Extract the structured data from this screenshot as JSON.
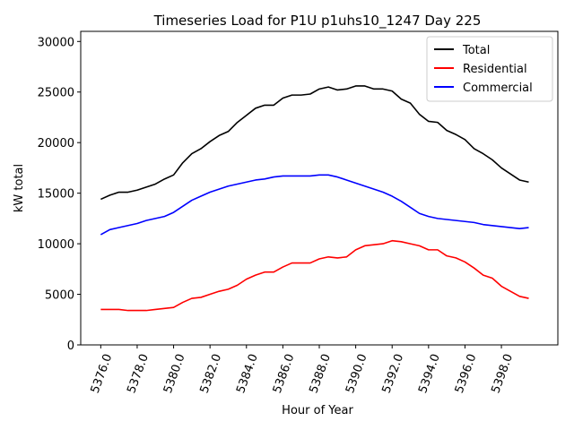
{
  "chart_data": {
    "type": "line",
    "title": "Timeseries Load for P1U p1uhs10_1247  Day 225",
    "xlabel": "Hour of Year",
    "ylabel": "kW total",
    "xlim": [
      5374.9,
      5401.1
    ],
    "ylim": [
      0,
      31000
    ],
    "xticks": [
      5376,
      5378,
      5380,
      5382,
      5384,
      5386,
      5388,
      5390,
      5392,
      5394,
      5396,
      5398
    ],
    "xtick_labels": [
      "5376.0",
      "5378.0",
      "5380.0",
      "5382.0",
      "5384.0",
      "5386.0",
      "5388.0",
      "5390.0",
      "5392.0",
      "5394.0",
      "5396.0",
      "5398.0"
    ],
    "yticks": [
      0,
      5000,
      10000,
      15000,
      20000,
      25000,
      30000
    ],
    "ytick_labels": [
      "0",
      "5000",
      "10000",
      "15000",
      "20000",
      "25000",
      "30000"
    ],
    "grid": false,
    "legend_position": "top-right",
    "x": [
      5376,
      5376.5,
      5377,
      5377.5,
      5378,
      5378.5,
      5379,
      5379.5,
      5380,
      5380.5,
      5381,
      5381.5,
      5382,
      5382.5,
      5383,
      5383.5,
      5384,
      5384.5,
      5385,
      5385.5,
      5386,
      5386.5,
      5387,
      5387.5,
      5388,
      5388.5,
      5389,
      5389.5,
      5390,
      5390.5,
      5391,
      5391.5,
      5392,
      5392.5,
      5393,
      5393.5,
      5394,
      5394.5,
      5395,
      5395.5,
      5396,
      5396.5,
      5397,
      5397.5,
      5398,
      5398.5,
      5399,
      5399.5
    ],
    "series": [
      {
        "name": "Total",
        "color": "#000000",
        "values": [
          14400,
          14800,
          15100,
          15100,
          15300,
          15600,
          15900,
          16400,
          16800,
          18000,
          18900,
          19400,
          20100,
          20700,
          21100,
          22000,
          22700,
          23400,
          23700,
          23700,
          24400,
          24700,
          24700,
          24800,
          25300,
          25500,
          25200,
          25300,
          25600,
          25600,
          25300,
          25300,
          25100,
          24300,
          23900,
          22800,
          22100,
          22000,
          21200,
          20800,
          20300,
          19400,
          18900,
          18300,
          17500,
          16900,
          16300,
          16100
        ]
      },
      {
        "name": "Residential",
        "color": "#ff0000",
        "values": [
          3500,
          3500,
          3500,
          3400,
          3400,
          3400,
          3500,
          3600,
          3700,
          4200,
          4600,
          4700,
          5000,
          5300,
          5500,
          5900,
          6500,
          6900,
          7200,
          7200,
          7700,
          8100,
          8100,
          8100,
          8500,
          8700,
          8600,
          8700,
          9400,
          9800,
          9900,
          10000,
          10300,
          10200,
          10000,
          9800,
          9400,
          9400,
          8800,
          8600,
          8200,
          7600,
          6900,
          6600,
          5800,
          5300,
          4800,
          4600
        ]
      },
      {
        "name": "Commercial",
        "color": "#0000ff",
        "values": [
          10900,
          11400,
          11600,
          11800,
          12000,
          12300,
          12500,
          12700,
          13100,
          13700,
          14300,
          14700,
          15100,
          15400,
          15700,
          15900,
          16100,
          16300,
          16400,
          16600,
          16700,
          16700,
          16700,
          16700,
          16800,
          16800,
          16600,
          16300,
          16000,
          15700,
          15400,
          15100,
          14700,
          14200,
          13600,
          13000,
          12700,
          12500,
          12400,
          12300,
          12200,
          12100,
          11900,
          11800,
          11700,
          11600,
          11500,
          11600
        ]
      }
    ]
  }
}
